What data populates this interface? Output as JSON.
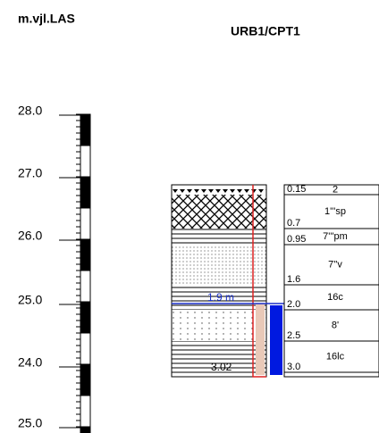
{
  "header": {
    "left": "m.vjl.LAS",
    "title": "URB1/CPT1"
  },
  "scale": {
    "labels": [
      "28.0",
      "27.0",
      "26.0",
      "25.0",
      "24.0",
      "25.0"
    ]
  },
  "log": {
    "water_level": "1.9 m",
    "bottom": "3.02",
    "layers": [
      {
        "depth": "0.15",
        "code": "2"
      },
      {
        "depth": "0.7",
        "code": "1'''sp"
      },
      {
        "depth": "0.95",
        "code": "7'''pm"
      },
      {
        "depth": "1.6",
        "code": "7''v"
      },
      {
        "depth": "2.0",
        "code": "16c"
      },
      {
        "depth": "2.5",
        "code": "8'"
      },
      {
        "depth": "3.0",
        "code": "16lc"
      }
    ]
  }
}
